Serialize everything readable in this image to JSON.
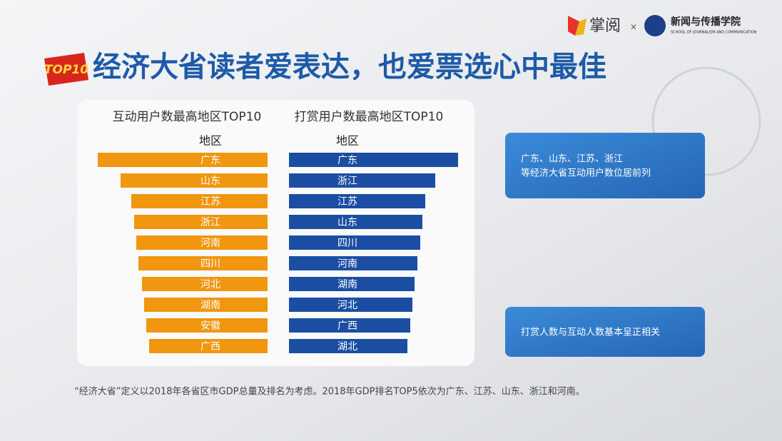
{
  "header": {
    "badge": "TOP10",
    "title": "经济大省读者爱表达，也爱票选心中最佳",
    "logo_app": "掌阅",
    "logo_times": "×",
    "logo_school": "新闻与传播学院",
    "logo_school_en": "SCHOOL OF JOURNALISM AND COMMUNICATION"
  },
  "chart_data": [
    {
      "type": "bar",
      "title": "互动用户数最高地区TOP10",
      "category_label": "地区",
      "bar_direction": "left",
      "color": "#f0960f",
      "categories": [
        "广东",
        "山东",
        "江苏",
        "浙江",
        "河南",
        "四川",
        "河北",
        "湖南",
        "安徽",
        "广西"
      ],
      "values": [
        238,
        206,
        191,
        187,
        184,
        181,
        176,
        173,
        170,
        166
      ]
    },
    {
      "type": "bar",
      "title": "打赏用户数最高地区TOP10",
      "category_label": "地区",
      "bar_direction": "right",
      "color": "#1b4ea3",
      "categories": [
        "广东",
        "浙江",
        "江苏",
        "山东",
        "四川",
        "河南",
        "湖南",
        "河北",
        "广西",
        "湖北"
      ],
      "values": [
        237,
        205,
        191,
        187,
        184,
        180,
        176,
        173,
        170,
        166
      ]
    }
  ],
  "notes": [
    [
      "广东、山东、江苏、浙江",
      "等经济大省互动用户数位居前列"
    ],
    [
      "打赏人数与互动人数基本呈正相关"
    ]
  ],
  "footnote": "“经济大省”定义以2018年各省区市GDP总量及排名为考虑。2018年GDP排名TOP5依次为广东、江苏、山东、浙江和河南。"
}
